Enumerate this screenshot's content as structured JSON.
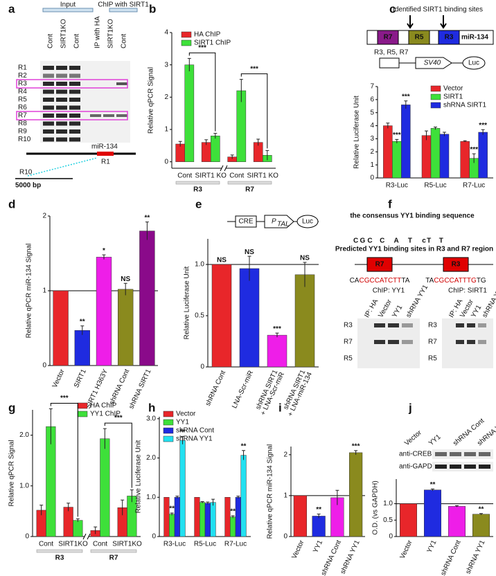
{
  "panel_a": {
    "label": "a",
    "input": "Input",
    "chip": "ChIP with SIRT1",
    "lanes": [
      "Cont",
      "SIRT1KO",
      "Cont",
      "IP with HA",
      "SIRT1KO",
      "Cont"
    ],
    "regions": [
      "R1",
      "R2",
      "R3",
      "R4",
      "R5",
      "R6",
      "R7",
      "R8",
      "R9",
      "R10"
    ],
    "gene": "miR-134",
    "map_labels": [
      "R1",
      "R10"
    ],
    "scale": "5000 bp"
  },
  "panel_f": {
    "label": "f",
    "logo_title": "the consensus YY1 binding sequence",
    "logo": [
      "C",
      "G",
      "C",
      "C",
      "A",
      "T",
      "c",
      "T",
      "T"
    ],
    "sites_title": "Predicted YY1 binding sites in R3 and R7 region",
    "sites": [
      {
        "region": "R7",
        "seq": "CACGCCATCTTTA"
      },
      {
        "region": "R3",
        "seq": "TACGCCATTTGTG"
      }
    ],
    "blots": [
      {
        "title": "ChIP: YY1",
        "lanes": [
          "IP: HA",
          "Vector",
          "YY1",
          "shRNA YY1"
        ],
        "rows": [
          "R3",
          "R7",
          "R5"
        ]
      },
      {
        "title": "ChIP: SIRT1",
        "lanes": [
          "IP: HA",
          "Vector",
          "YY1",
          "shRNA YY1"
        ],
        "rows": [
          "R3",
          "R7",
          "R5"
        ]
      }
    ]
  },
  "chart_data": [
    {
      "type": "bar",
      "label": "b",
      "ylabel": "Relative qPCR Signal",
      "categories": [
        "Cont",
        "SIRT1 KO",
        "Cont",
        "SIRT1 KO"
      ],
      "groups": [
        "R3",
        "R7"
      ],
      "comparisons": [
        "***",
        "***"
      ],
      "series": [
        {
          "name": "HA ChIP",
          "color": "#e8262a",
          "values": [
            0.55,
            0.6,
            0.15,
            0.6
          ],
          "errors": [
            0.08,
            0.08,
            0.06,
            0.1
          ]
        },
        {
          "name": "SIRT1 ChIP",
          "color": "#3ee03a",
          "values": [
            3.0,
            0.8,
            2.2,
            0.2
          ],
          "errors": [
            0.2,
            0.08,
            0.35,
            0.15
          ]
        }
      ],
      "ylim": [
        -0.2,
        4
      ],
      "yticks": [
        0,
        1,
        2,
        3,
        4
      ]
    },
    {
      "type": "bar",
      "label": "c",
      "ylabel": "Relative Luciferase Unit",
      "diagram": {
        "title": "Identified SIRT1 binding sites",
        "elements": [
          "R7",
          "R5",
          "R3",
          "miR-134"
        ],
        "construct": [
          "R3, R5, R7",
          "SV40",
          "Luc"
        ]
      },
      "categories": [
        "R3-Luc",
        "R5-Luc",
        "R7-Luc"
      ],
      "series": [
        {
          "name": "Vector",
          "color": "#e8262a",
          "values": [
            4.0,
            3.25,
            2.8
          ],
          "errors": [
            0.2,
            0.35,
            0.05
          ]
        },
        {
          "name": "SIRT1",
          "color": "#3ee03a",
          "values": [
            2.8,
            3.8,
            1.5
          ],
          "errors": [
            0.15,
            0.1,
            0.35
          ],
          "annotations": [
            "***",
            null,
            "***"
          ]
        },
        {
          "name": "shRNA SIRT1",
          "color": "#1f2be0",
          "values": [
            5.6,
            3.35,
            3.5
          ],
          "errors": [
            0.3,
            0.15,
            0.2
          ],
          "annotations": [
            "***",
            null,
            "***"
          ]
        }
      ],
      "ylim": [
        0,
        7
      ],
      "yticks": [
        0,
        1,
        2,
        3,
        4,
        5,
        6,
        7
      ]
    },
    {
      "type": "bar",
      "label": "d",
      "ylabel": "Relative qPCR miR-134 Signal",
      "categories": [
        "Vector",
        "SIRT1",
        "SIRT1 H363Y",
        "shRNA Cont",
        "shRNA SIRT1"
      ],
      "values": [
        1,
        0.47,
        1.45,
        1.02,
        1.8
      ],
      "errors": [
        null,
        0.06,
        0.03,
        0.08,
        0.12
      ],
      "colors": [
        "#e8262a",
        "#1f2be0",
        "#ee1ee8",
        "#8a8a1e",
        "#8a0a8a"
      ],
      "annotations": [
        null,
        "**",
        "*",
        "NS",
        "**"
      ],
      "reference_line": 1,
      "ylim": [
        0,
        2
      ],
      "yticks": [
        0,
        1,
        2
      ]
    },
    {
      "type": "bar",
      "label": "e",
      "ylabel": "Relative Luciferase Unit",
      "diagram": {
        "construct": [
          "CRE",
          "P",
          "TAL",
          "Luc"
        ]
      },
      "categories": [
        "shRNA Cont",
        "LNA-Scr-miR",
        "shRNA SIRT1 + LNA-Scr-miR",
        "shRNA SIRT1 + LNA-miR-134"
      ],
      "values": [
        1,
        0.96,
        0.31,
        0.9
      ],
      "errors": [
        null,
        0.12,
        0.02,
        0.12
      ],
      "colors": [
        "#e8262a",
        "#1f2be0",
        "#ee1ee8",
        "#8a8a1e"
      ],
      "annotations": [
        "NS",
        "NS",
        "***",
        "NS"
      ],
      "reference_line": 1,
      "ylim": [
        0,
        1.25
      ],
      "yticks": [
        0,
        0.5,
        {
          "value": 1,
          "label": "1.0"
        }
      ]
    },
    {
      "type": "bar",
      "label": "g",
      "ylabel": "Relative qPCR Signal",
      "categories": [
        "Cont",
        "SIRT1KO",
        "Cont",
        "SIRT1KO"
      ],
      "groups": [
        "R3",
        "R7"
      ],
      "comparisons": [
        "***",
        "***"
      ],
      "series": [
        {
          "name": "HA ChIP",
          "color": "#e8262a",
          "values": [
            0.52,
            0.58,
            0.12,
            0.57
          ],
          "errors": [
            0.1,
            0.08,
            0.07,
            0.15
          ]
        },
        {
          "name": "YY1 ChIP",
          "color": "#3ee03a",
          "values": [
            2.17,
            0.32,
            1.93,
            0.8
          ],
          "errors": [
            0.35,
            0.03,
            0.2,
            0.12
          ]
        }
      ],
      "ylim": [
        0,
        2.5
      ],
      "yticks": [
        0,
        {
          "value": 1,
          "label": "1.0"
        },
        {
          "value": 2,
          "label": "2.0"
        }
      ]
    },
    {
      "type": "bar",
      "label": "h",
      "ylabel": "Relative Luciferase Unit",
      "categories": [
        "R3-Luc",
        "R5-Luc",
        "R7-Luc"
      ],
      "series": [
        {
          "name": "Vector",
          "color": "#e8262a",
          "values": [
            1,
            1,
            1
          ],
          "errors": [
            null,
            null,
            null
          ]
        },
        {
          "name": "YY1",
          "color": "#3ee03a",
          "values": [
            0.57,
            0.87,
            0.5
          ],
          "errors": [
            0.03,
            0.02,
            0.03
          ],
          "annotations": [
            "**",
            null,
            "**"
          ]
        },
        {
          "name": "shRNA Cont",
          "color": "#1f2be0",
          "values": [
            1,
            0.85,
            1
          ],
          "errors": [
            0.03,
            0.03,
            0.03
          ]
        },
        {
          "name": "shRNA YY1",
          "color": "#22e0f0",
          "values": [
            2.45,
            0.87,
            2.07
          ],
          "errors": [
            0.1,
            0.08,
            0.12
          ],
          "annotations": [
            "**",
            null,
            "**"
          ]
        }
      ],
      "ylim": [
        0,
        3.05
      ],
      "yticks": [
        0,
        {
          "value": 1,
          "label": "1.0"
        },
        {
          "value": 2,
          "label": "2.0"
        },
        {
          "value": 3,
          "label": "3.0"
        }
      ]
    },
    {
      "type": "bar",
      "label": "i",
      "ylabel": "Relative qPCR miR-134 Signal",
      "categories": [
        "Vector",
        "YY1",
        "shRNA Cont",
        "shRNA YY1"
      ],
      "values": [
        1,
        0.5,
        0.95,
        2.05
      ],
      "errors": [
        null,
        0.05,
        0.18,
        0.05
      ],
      "colors": [
        "#e8262a",
        "#1f2be0",
        "#ee1ee8",
        "#8a8a1e"
      ],
      "annotations": [
        null,
        "**",
        null,
        "***"
      ],
      "reference_line": 1,
      "ylim": [
        0,
        2.2
      ],
      "yticks": [
        0,
        1,
        2
      ]
    },
    {
      "type": "bar",
      "label": "j",
      "ylabel": "O.D. (vs GAPDH)",
      "blot": [
        "anti-CREB",
        "anti-GAPDH"
      ],
      "categories": [
        "Vector",
        "YY1",
        "shRNA Cont",
        "shRNA YY1"
      ],
      "values": [
        1,
        1.42,
        0.92,
        0.68
      ],
      "errors": [
        null,
        0.03,
        0.02,
        0.02
      ],
      "colors": [
        "#e8262a",
        "#1f2be0",
        "#ee1ee8",
        "#8a8a1e"
      ],
      "annotations": [
        null,
        "**",
        null,
        "**"
      ],
      "reference_line": 1,
      "ylim": [
        0,
        1.75
      ],
      "yticks": [
        0,
        0.5,
        {
          "value": 1,
          "label": "1.0"
        }
      ]
    }
  ]
}
